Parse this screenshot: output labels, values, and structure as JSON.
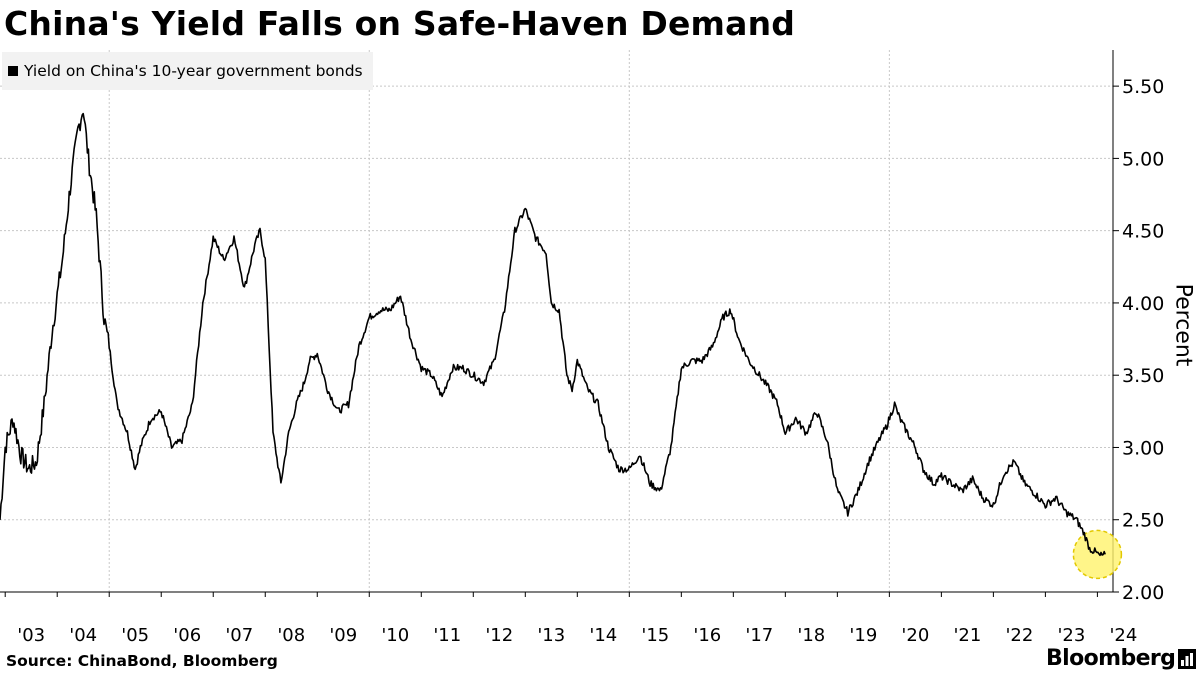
{
  "title": "China's Yield Falls on Safe-Haven Demand",
  "legend": {
    "label": "Yield on China's 10-year government bonds"
  },
  "source": "Source: ChinaBond, Bloomberg",
  "brand": "Bloomberg",
  "colors": {
    "line": "#000000",
    "grid": "#c8c8c8",
    "highlight_fill": "#fff36b",
    "highlight_stroke": "#e2c800",
    "legend_bg": "#f2f2f2"
  },
  "chart_data": {
    "type": "line",
    "title": "China's Yield Falls on Safe-Haven Demand",
    "xlabel": "",
    "ylabel": "Percent",
    "ylim": [
      2.0,
      5.75
    ],
    "xlim": [
      2002.9,
      2024.3
    ],
    "y_ticks": [
      2.0,
      2.5,
      3.0,
      3.5,
      4.0,
      4.5,
      5.0,
      5.5
    ],
    "y_tick_labels": [
      "2.00",
      "2.50",
      "3.00",
      "3.50",
      "4.00",
      "4.50",
      "5.00",
      "5.50"
    ],
    "x_ticks": [
      2003,
      2004,
      2005,
      2006,
      2007,
      2008,
      2009,
      2010,
      2011,
      2012,
      2013,
      2014,
      2015,
      2016,
      2017,
      2018,
      2019,
      2020,
      2021,
      2022,
      2023,
      2024
    ],
    "x_tick_labels": [
      "'03",
      "'04",
      "'05",
      "'06",
      "'07",
      "'08",
      "'09",
      "'10",
      "'11",
      "'12",
      "'13",
      "'14",
      "'15",
      "'16",
      "'17",
      "'18",
      "'19",
      "'20",
      "'21",
      "'22",
      "'23",
      "'24"
    ],
    "grid": true,
    "highlight": {
      "x": 2024.0,
      "y": 2.26
    },
    "series": [
      {
        "name": "Yield on China's 10-year government bonds",
        "x": [
          2002.9,
          2003.0,
          2003.15,
          2003.3,
          2003.45,
          2003.6,
          2003.75,
          2003.9,
          2004.1,
          2004.25,
          2004.4,
          2004.5,
          2004.6,
          2004.75,
          2004.9,
          2005.0,
          2005.15,
          2005.35,
          2005.5,
          2005.6,
          2005.8,
          2006.0,
          2006.2,
          2006.4,
          2006.6,
          2006.8,
          2007.0,
          2007.2,
          2007.4,
          2007.6,
          2007.8,
          2007.9,
          2008.0,
          2008.15,
          2008.3,
          2008.45,
          2008.6,
          2008.75,
          2008.85,
          2009.0,
          2009.2,
          2009.4,
          2009.6,
          2009.8,
          2010.0,
          2010.2,
          2010.4,
          2010.6,
          2010.8,
          2011.0,
          2011.2,
          2011.4,
          2011.6,
          2011.8,
          2012.0,
          2012.2,
          2012.4,
          2012.6,
          2012.8,
          2013.0,
          2013.2,
          2013.4,
          2013.5,
          2013.65,
          2013.8,
          2013.9,
          2014.0,
          2014.2,
          2014.4,
          2014.6,
          2014.8,
          2015.0,
          2015.2,
          2015.4,
          2015.6,
          2015.8,
          2016.0,
          2016.2,
          2016.4,
          2016.6,
          2016.8,
          2016.95,
          2017.1,
          2017.3,
          2017.5,
          2017.7,
          2017.85,
          2018.0,
          2018.2,
          2018.4,
          2018.6,
          2018.8,
          2019.0,
          2019.2,
          2019.4,
          2019.6,
          2019.8,
          2019.95,
          2020.1,
          2020.2,
          2020.35,
          2020.5,
          2020.65,
          2020.85,
          2021.0,
          2021.2,
          2021.4,
          2021.6,
          2021.8,
          2022.0,
          2022.2,
          2022.4,
          2022.6,
          2022.8,
          2023.0,
          2023.2,
          2023.4,
          2023.6,
          2023.75,
          2023.85,
          2023.95,
          2024.05,
          2024.15
        ],
        "y": [
          2.5,
          3.0,
          3.2,
          2.95,
          2.85,
          2.9,
          3.3,
          3.8,
          4.3,
          4.8,
          5.2,
          5.35,
          5.0,
          4.6,
          3.9,
          3.7,
          3.3,
          3.1,
          2.85,
          3.0,
          3.2,
          3.25,
          3.0,
          3.05,
          3.3,
          4.0,
          4.45,
          4.3,
          4.45,
          4.1,
          4.4,
          4.5,
          4.3,
          3.1,
          2.75,
          3.1,
          3.3,
          3.45,
          3.6,
          3.65,
          3.4,
          3.25,
          3.3,
          3.7,
          3.9,
          3.95,
          3.95,
          4.05,
          3.75,
          3.55,
          3.5,
          3.35,
          3.55,
          3.55,
          3.5,
          3.45,
          3.6,
          3.95,
          4.5,
          4.65,
          4.45,
          4.35,
          4.0,
          3.95,
          3.5,
          3.4,
          3.6,
          3.4,
          3.3,
          3.0,
          2.85,
          2.85,
          2.95,
          2.75,
          2.7,
          3.0,
          3.55,
          3.6,
          3.6,
          3.7,
          3.9,
          3.95,
          3.75,
          3.6,
          3.5,
          3.4,
          3.3,
          3.1,
          3.2,
          3.1,
          3.25,
          3.05,
          2.7,
          2.55,
          2.7,
          2.9,
          3.05,
          3.15,
          3.3,
          3.2,
          3.1,
          3.0,
          2.85,
          2.75,
          2.8,
          2.75,
          2.7,
          2.78,
          2.65,
          2.6,
          2.82,
          2.9,
          2.75,
          2.68,
          2.6,
          2.65,
          2.55,
          2.5,
          2.4,
          2.3,
          2.28,
          2.25,
          2.26
        ]
      }
    ]
  }
}
